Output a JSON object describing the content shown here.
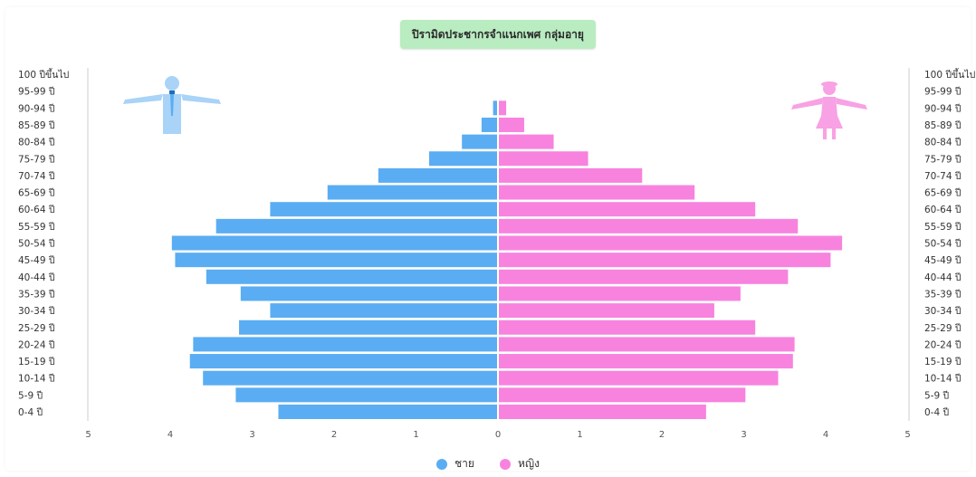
{
  "chart_data": {
    "type": "bar",
    "orientation": "horizontal-pyramid",
    "title": "ปิรามิดประชากรจำแนกเพศ กลุ่มอายุ",
    "categories": [
      "0-4 ปี",
      "5-9 ปี",
      "10-14 ปี",
      "15-19 ปี",
      "20-24 ปี",
      "25-29 ปี",
      "30-34 ปี",
      "35-39 ปี",
      "40-44 ปี",
      "45-49 ปี",
      "50-54 ปี",
      "55-59 ปี",
      "60-64 ปี",
      "65-69 ปี",
      "70-74 ปี",
      "75-79 ปี",
      "80-84 ปี",
      "85-89 ปี",
      "90-94 ปี",
      "95-99 ปี",
      "100 ปีขึ้นไป"
    ],
    "series": [
      {
        "name": "ชาย",
        "color": "#5aadf2",
        "side": "left",
        "values": [
          2.68,
          3.2,
          3.6,
          3.76,
          3.72,
          3.16,
          2.78,
          3.14,
          3.56,
          3.94,
          3.98,
          3.44,
          2.78,
          2.08,
          1.46,
          0.84,
          0.44,
          0.2,
          0.06,
          0,
          0
        ]
      },
      {
        "name": "หญิง",
        "color": "#f783de",
        "side": "right",
        "values": [
          2.54,
          3.02,
          3.42,
          3.6,
          3.62,
          3.14,
          2.64,
          2.96,
          3.54,
          4.06,
          4.2,
          3.66,
          3.14,
          2.4,
          1.76,
          1.1,
          0.68,
          0.32,
          0.1,
          0,
          0
        ]
      }
    ],
    "xaxis_ticks": [
      "5",
      "4",
      "3",
      "2",
      "1",
      "0",
      "1",
      "2",
      "3",
      "4",
      "5"
    ],
    "xlim": [
      -5,
      5
    ],
    "grid": false,
    "legend_position": "bottom-center"
  },
  "icons": {
    "left": "male-figure-icon",
    "right": "female-figure-icon"
  },
  "colors": {
    "male": "#5aadf2",
    "female": "#f783de",
    "title_bg": "#b9ecc0"
  }
}
